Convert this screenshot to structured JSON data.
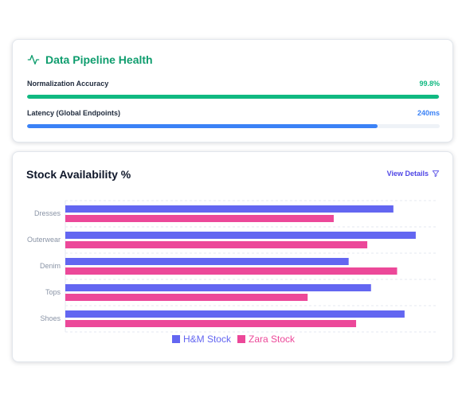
{
  "pipeline": {
    "title": "Data Pipeline Health",
    "icon": "activity-icon",
    "metrics": [
      {
        "label": "Normalization Accuracy",
        "value": "99.8%",
        "level": 0.998,
        "color": "#10b981"
      },
      {
        "label": "Latency (Global Endpoints)",
        "value": "240ms",
        "level": 0.85,
        "color": "#3b82f6"
      }
    ]
  },
  "stock": {
    "title": "Stock Availability %",
    "view_details": "View Details",
    "view_details_icon": "filter-icon"
  },
  "colors": {
    "hm": "#6366f1",
    "zara": "#ec4899",
    "pipeline_accent": "#0f9d6e"
  },
  "chart_data": {
    "type": "bar",
    "orientation": "horizontal",
    "categories": [
      "Dresses",
      "Outerwear",
      "Denim",
      "Tops",
      "Shoes"
    ],
    "series": [
      {
        "name": "H&M Stock",
        "values": [
          88,
          94,
          76,
          82,
          91
        ]
      },
      {
        "name": "Zara Stock",
        "values": [
          72,
          81,
          89,
          65,
          78
        ]
      }
    ],
    "xlim": [
      0,
      100
    ],
    "grid": true,
    "legend": "bottom"
  }
}
